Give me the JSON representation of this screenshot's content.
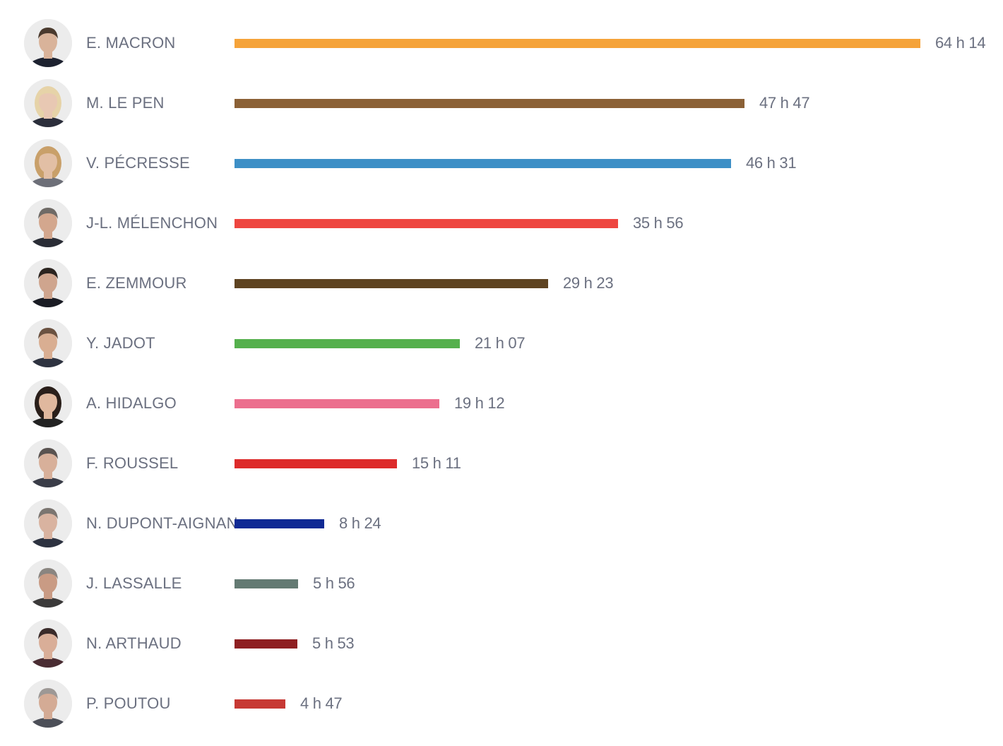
{
  "chart_data": {
    "type": "bar",
    "orientation": "horizontal",
    "title": "",
    "xlabel": "",
    "ylabel": "",
    "grid": false,
    "legend": "none",
    "xlim_minutes": [
      0,
      3854
    ],
    "categories": [
      "E. MACRON",
      "M. LE PEN",
      "V. PÉCRESSE",
      "J-L. MÉLENCHON",
      "E. ZEMMOUR",
      "Y. JADOT",
      "A. HIDALGO",
      "F. ROUSSEL",
      "N. DUPONT-AIGNAN",
      "J. LASSALLE",
      "N. ARTHAUD",
      "P. POUTOU"
    ],
    "value_labels": [
      "64 h 14",
      "47 h 47",
      "46 h 31",
      "35 h 56",
      "29 h 23",
      "21 h 07",
      "19 h 12",
      "15 h 11",
      "8 h 24",
      "5 h 56",
      "5 h 53",
      "4 h 47"
    ],
    "values_minutes": [
      3854,
      2867,
      2791,
      2156,
      1763,
      1267,
      1152,
      911,
      504,
      356,
      353,
      287
    ],
    "colors": [
      "#f5a33a",
      "#8b6136",
      "#3d8fc6",
      "#ee4640",
      "#5e4321",
      "#55b04d",
      "#ec6f8e",
      "#dd2b2b",
      "#102a94",
      "#647a73",
      "#8e1f22",
      "#c73934"
    ],
    "icons": [
      "portrait-macron",
      "portrait-le-pen",
      "portrait-pecresse",
      "portrait-melenchon",
      "portrait-zemmour",
      "portrait-jadot",
      "portrait-hidalgo",
      "portrait-roussel",
      "portrait-dupont-aignan",
      "portrait-lassalle",
      "portrait-arthaud",
      "portrait-poutou"
    ]
  }
}
